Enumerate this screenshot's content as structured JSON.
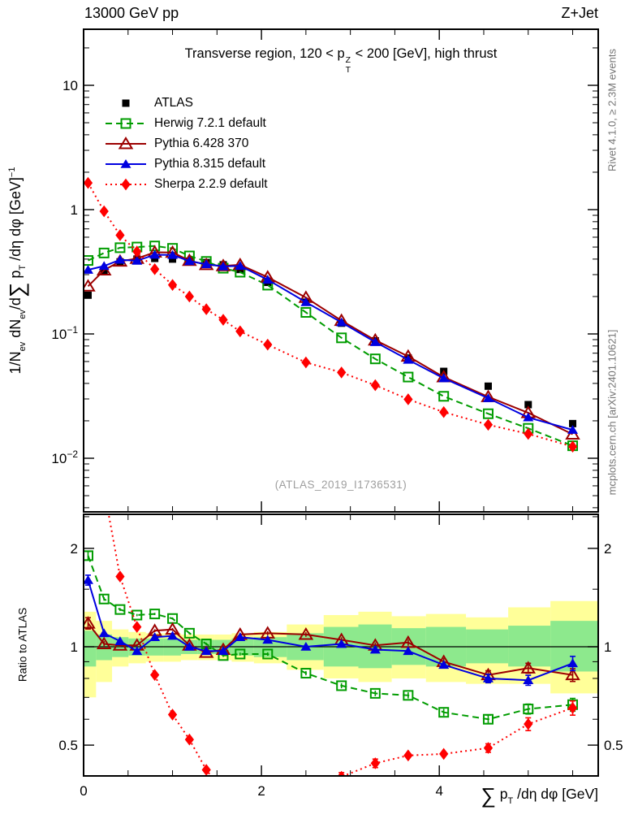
{
  "header": {
    "left": "13000 GeV pp",
    "right": "Z+Jet"
  },
  "title": {
    "pre": "Transverse region, 120 < p",
    "sup": "Z",
    "sub": "T",
    "post": " < 200 [GeV], high thrust"
  },
  "labels": {
    "y": {
      "p1": "1/N",
      "s1": "ev",
      "p2": " dN",
      "s2": "ev",
      "p3": "/d",
      "sum": "∑",
      "p4": " p",
      "s3": "T",
      "p5": " /dη dφ  [GeV]",
      "sup": "−1"
    },
    "x": {
      "sum": "∑",
      "p1": " p",
      "s1": "T",
      "p2": " /dη dφ [GeV]"
    },
    "ratio": "Ratio to ATLAS"
  },
  "side_notes": {
    "top_right": "Rivet 4.1.0, ≥ 2.3M events",
    "bottom_right": "mcplots.cern.ch [arXiv:2401.10621]"
  },
  "watermark": "(ATLAS_2019_I1736531)",
  "chart_data": {
    "type": "line",
    "x_axis_label": "sum pT / deta dphi [GeV]",
    "y_axis_label": "1/N_ev dN_ev/d sum pT/deta dphi [GeV]^-1",
    "axes": {
      "x": {
        "range": [
          0,
          5.79
        ],
        "minor_step": 0.5,
        "ticks": [
          {
            "v": 0,
            "label": "0"
          },
          {
            "v": 2,
            "label": "2"
          },
          {
            "v": 4,
            "label": "4"
          }
        ]
      },
      "main_y": {
        "scale": "log",
        "range": [
          0.0037,
          27.8
        ],
        "ticks": [
          {
            "v": 10,
            "label": "10",
            "exp": ""
          },
          {
            "v": 1,
            "label": "1",
            "exp": ""
          },
          {
            "v": 0.1,
            "label": "10",
            "exp": "−1"
          },
          {
            "v": 0.01,
            "label": "10",
            "exp": "−2"
          }
        ]
      },
      "ratio_y": {
        "scale": "log",
        "range": [
          0.4,
          2.52
        ],
        "ticks": [
          {
            "v": 2,
            "label": "2"
          },
          {
            "v": 1,
            "label": "1"
          },
          {
            "v": 0.5,
            "label": "0.5"
          }
        ],
        "minor": [
          2.5,
          1.5,
          0.9,
          0.8,
          0.7,
          0.6
        ]
      }
    },
    "x": [
      0.05,
      0.23,
      0.41,
      0.6,
      0.8,
      1.0,
      1.19,
      1.38,
      1.57,
      1.76,
      2.07,
      2.5,
      2.9,
      3.28,
      3.65,
      4.05,
      4.55,
      5.0,
      5.5
    ],
    "series": [
      {
        "id": "atlas",
        "name": "ATLAS",
        "color": "#000000",
        "marker": "square",
        "fill": true,
        "line": "none",
        "main": [
          0.205,
          0.32,
          0.38,
          0.4,
          0.405,
          0.4,
          0.385,
          0.375,
          0.36,
          0.33,
          0.26,
          0.18,
          0.122,
          0.088,
          0.064,
          0.05,
          0.038,
          0.027,
          0.019
        ],
        "ratio": null,
        "rerr": null
      },
      {
        "id": "herwig",
        "name": "Herwig 7.2.1 default",
        "color": "#009c00",
        "marker": "square",
        "fill": false,
        "line": "dash",
        "main": [
          0.39,
          0.448,
          0.494,
          0.5,
          0.51,
          0.488,
          0.424,
          0.383,
          0.338,
          0.314,
          0.247,
          0.149,
          0.093,
          0.063,
          0.045,
          0.0315,
          0.0228,
          0.0174,
          0.0126
        ],
        "ratio": [
          1.9,
          1.4,
          1.3,
          1.25,
          1.26,
          1.22,
          1.1,
          1.02,
          0.94,
          0.95,
          0.95,
          0.83,
          0.76,
          0.72,
          0.71,
          0.63,
          0.6,
          0.645,
          0.665
        ],
        "rerr": [
          0.03,
          0.012,
          0.01,
          0.008,
          0.008,
          0.008,
          0.008,
          0.008,
          0.01,
          0.01,
          0.012,
          0.015,
          0.018,
          0.02,
          0.022,
          0.025,
          0.03,
          0.035,
          0.045
        ]
      },
      {
        "id": "pythia6",
        "name": "Pythia 6.428 370",
        "color": "#9c0000",
        "marker": "triangle",
        "fill": false,
        "line": "solid",
        "main": [
          0.242,
          0.326,
          0.384,
          0.404,
          0.454,
          0.452,
          0.389,
          0.36,
          0.353,
          0.36,
          0.286,
          0.196,
          0.128,
          0.089,
          0.066,
          0.045,
          0.0312,
          0.0232,
          0.0156
        ],
        "ratio": [
          1.18,
          1.02,
          1.01,
          1.01,
          1.12,
          1.13,
          1.01,
          0.96,
          0.98,
          1.09,
          1.1,
          1.09,
          1.05,
          1.01,
          1.03,
          0.9,
          0.82,
          0.86,
          0.82
        ],
        "rerr": [
          0.04,
          0.02,
          0.012,
          0.01,
          0.01,
          0.01,
          0.01,
          0.01,
          0.012,
          0.012,
          0.014,
          0.016,
          0.018,
          0.02,
          0.022,
          0.025,
          0.03,
          0.035,
          0.045
        ]
      },
      {
        "id": "pythia8",
        "name": "Pythia 8.315 default",
        "color": "#0000e0",
        "marker": "triangle",
        "fill": true,
        "line": "solid",
        "main": [
          0.328,
          0.352,
          0.395,
          0.388,
          0.433,
          0.432,
          0.385,
          0.364,
          0.349,
          0.353,
          0.273,
          0.18,
          0.124,
          0.086,
          0.062,
          0.044,
          0.0304,
          0.0213,
          0.0169
        ],
        "ratio": [
          1.6,
          1.1,
          1.04,
          0.97,
          1.07,
          1.08,
          1.0,
          0.97,
          0.97,
          1.07,
          1.05,
          1.0,
          1.02,
          0.98,
          0.97,
          0.88,
          0.8,
          0.79,
          0.89
        ],
        "rerr": [
          0.035,
          0.018,
          0.012,
          0.01,
          0.01,
          0.01,
          0.01,
          0.01,
          0.012,
          0.012,
          0.014,
          0.016,
          0.018,
          0.02,
          0.022,
          0.025,
          0.03,
          0.035,
          0.05
        ]
      },
      {
        "id": "sherpa",
        "name": "Sherpa 2.2.9 default",
        "color": "#ff0000",
        "marker": "diamond",
        "fill": true,
        "line": "dot",
        "main": [
          1.64,
          0.97,
          0.623,
          0.46,
          0.332,
          0.248,
          0.2,
          0.158,
          0.13,
          0.105,
          0.082,
          0.059,
          0.049,
          0.0387,
          0.0298,
          0.0235,
          0.0186,
          0.0157,
          0.0124
        ],
        "ratio": [
          null,
          null,
          1.64,
          1.15,
          0.82,
          0.62,
          0.52,
          0.42,
          0.36,
          null,
          null,
          null,
          0.4,
          0.44,
          0.465,
          0.47,
          0.49,
          0.58,
          0.65
        ],
        "rerr": [
          0,
          0,
          0.02,
          0.015,
          0.012,
          0.012,
          0.012,
          0.015,
          0.02,
          0,
          0,
          0,
          0.03,
          0.03,
          0.025,
          0.025,
          0.03,
          0.045,
          0.05
        ]
      }
    ],
    "bands": {
      "yellow_color": "#ffff99",
      "green_color": "#8de98d",
      "edges": [
        0,
        0.14,
        0.32,
        0.505,
        0.7,
        0.9,
        1.095,
        1.285,
        1.475,
        1.665,
        1.915,
        2.285,
        2.7,
        3.09,
        3.465,
        3.85,
        4.3,
        4.775,
        5.25,
        5.79
      ],
      "yellow": [
        [
          0.7,
          1.28
        ],
        [
          0.78,
          1.2
        ],
        [
          0.87,
          1.13
        ],
        [
          0.89,
          1.11
        ],
        [
          0.9,
          1.1
        ],
        [
          0.9,
          1.1
        ],
        [
          0.91,
          1.09
        ],
        [
          0.91,
          1.09
        ],
        [
          0.91,
          1.09
        ],
        [
          0.9,
          1.1
        ],
        [
          0.89,
          1.11
        ],
        [
          0.85,
          1.17
        ],
        [
          0.8,
          1.25
        ],
        [
          0.78,
          1.28
        ],
        [
          0.8,
          1.24
        ],
        [
          0.78,
          1.26
        ],
        [
          0.77,
          1.23
        ],
        [
          0.77,
          1.32
        ],
        [
          0.72,
          1.38
        ]
      ],
      "green": [
        [
          0.87,
          1.12
        ],
        [
          0.91,
          1.09
        ],
        [
          0.93,
          1.07
        ],
        [
          0.94,
          1.06
        ],
        [
          0.94,
          1.06
        ],
        [
          0.94,
          1.06
        ],
        [
          0.95,
          1.05
        ],
        [
          0.95,
          1.05
        ],
        [
          0.95,
          1.05
        ],
        [
          0.94,
          1.06
        ],
        [
          0.93,
          1.07
        ],
        [
          0.91,
          1.1
        ],
        [
          0.87,
          1.15
        ],
        [
          0.86,
          1.17
        ],
        [
          0.88,
          1.14
        ],
        [
          0.87,
          1.15
        ],
        [
          0.89,
          1.13
        ],
        [
          0.87,
          1.16
        ],
        [
          0.84,
          1.2
        ]
      ]
    }
  }
}
